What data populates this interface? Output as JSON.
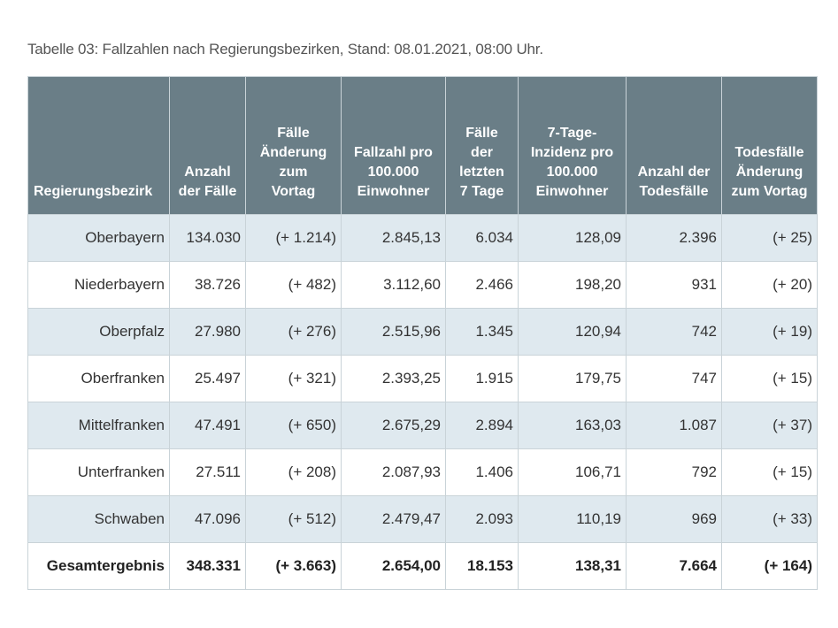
{
  "caption": "Tabelle 03: Fallzahlen nach Regierungsbezirken, Stand: 08.01.2021, 08:00 Uhr.",
  "headers": [
    [
      "Regierungsbezirk"
    ],
    [
      "Anzahl",
      "der Fälle"
    ],
    [
      "Fälle",
      "Änderung",
      "zum",
      "Vortag"
    ],
    [
      "Fallzahl pro",
      "100.000",
      "Einwohner"
    ],
    [
      "Fälle",
      "der",
      "letzten",
      "7 Tage"
    ],
    [
      "7-Tage-",
      "Inzidenz pro",
      "100.000",
      "Einwohner"
    ],
    [
      "Anzahl der",
      "Todesfälle"
    ],
    [
      "Todesfälle",
      "Änderung",
      "zum Vortag"
    ]
  ],
  "rows": [
    [
      "Oberbayern",
      "134.030",
      "(+ 1.214)",
      "2.845,13",
      "6.034",
      "128,09",
      "2.396",
      "(+ 25)"
    ],
    [
      "Niederbayern",
      "38.726",
      "(+ 482)",
      "3.112,60",
      "2.466",
      "198,20",
      "931",
      "(+ 20)"
    ],
    [
      "Oberpfalz",
      "27.980",
      "(+ 276)",
      "2.515,96",
      "1.345",
      "120,94",
      "742",
      "(+ 19)"
    ],
    [
      "Oberfranken",
      "25.497",
      "(+ 321)",
      "2.393,25",
      "1.915",
      "179,75",
      "747",
      "(+ 15)"
    ],
    [
      "Mittelfranken",
      "47.491",
      "(+ 650)",
      "2.675,29",
      "2.894",
      "163,03",
      "1.087",
      "(+ 37)"
    ],
    [
      "Unterfranken",
      "27.511",
      "(+ 208)",
      "2.087,93",
      "1.406",
      "106,71",
      "792",
      "(+ 15)"
    ],
    [
      "Schwaben",
      "47.096",
      "(+ 512)",
      "2.479,47",
      "2.093",
      "110,19",
      "969",
      "(+ 33)"
    ]
  ],
  "total": [
    "Gesamtergebnis",
    "348.331",
    "(+ 3.663)",
    "2.654,00",
    "18.153",
    "138,31",
    "7.664",
    "(+ 164)"
  ],
  "colors": {
    "header_bg": "#6a7e87",
    "row_alt_bg": "#dfe9ef",
    "border": "#c9d3d8"
  }
}
